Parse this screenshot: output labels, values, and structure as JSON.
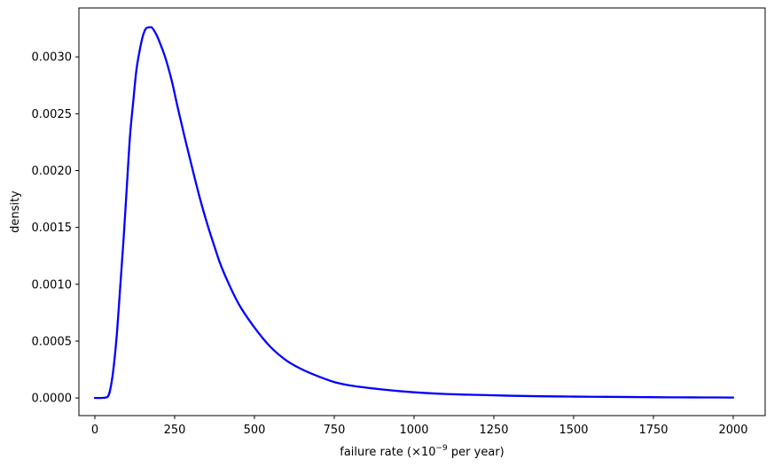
{
  "chart_data": {
    "type": "line",
    "title": "",
    "xlabel": "failure rate (×10",
    "xlabel_exponent": "−9",
    "xlabel_suffix": " per year)",
    "ylabel": "density",
    "xlim": [
      -50,
      2100
    ],
    "ylim": [
      -0.000155,
      0.00343
    ],
    "grid": false,
    "xticks": [
      0,
      250,
      500,
      750,
      1000,
      1250,
      1500,
      1750,
      2000
    ],
    "xtick_labels": [
      "0",
      "250",
      "500",
      "750",
      "1000",
      "1250",
      "1500",
      "1750",
      "2000"
    ],
    "yticks": [
      0.0,
      0.0005,
      0.001,
      0.0015,
      0.002,
      0.0025,
      0.003
    ],
    "ytick_labels": [
      "0.0000",
      "0.0005",
      "0.0010",
      "0.0015",
      "0.0020",
      "0.0025",
      "0.0030"
    ],
    "series": [
      {
        "color": "#0000ff",
        "x": [
          0,
          20,
          40,
          50,
          60,
          70,
          80,
          90,
          100,
          110,
          120,
          130,
          140,
          150,
          160,
          170,
          178,
          190,
          200,
          220,
          240,
          260,
          280,
          300,
          325,
          350,
          375,
          400,
          450,
          500,
          550,
          600,
          650,
          700,
          750,
          800,
          900,
          1000,
          1100,
          1200,
          1300,
          1400,
          1500,
          1600,
          1700,
          1800,
          1900,
          2000
        ],
        "y": [
          0.0,
          0.0,
          1e-05,
          0.0001,
          0.0003,
          0.0006,
          0.001,
          0.0014,
          0.00185,
          0.0023,
          0.0026,
          0.00288,
          0.00305,
          0.00318,
          0.00325,
          0.00326,
          0.00326,
          0.00321,
          0.00315,
          0.003,
          0.0028,
          0.00255,
          0.00231,
          0.00208,
          0.0018,
          0.00155,
          0.00133,
          0.00113,
          0.00083,
          0.00062,
          0.00045,
          0.00033,
          0.00025,
          0.00019,
          0.00014,
          0.00011,
          7.5e-05,
          5e-05,
          3.5e-05,
          2.7e-05,
          2e-05,
          1.5e-05,
          1.2e-05,
          1e-05,
          8e-06,
          6e-06,
          5e-06,
          4e-06
        ]
      }
    ]
  }
}
